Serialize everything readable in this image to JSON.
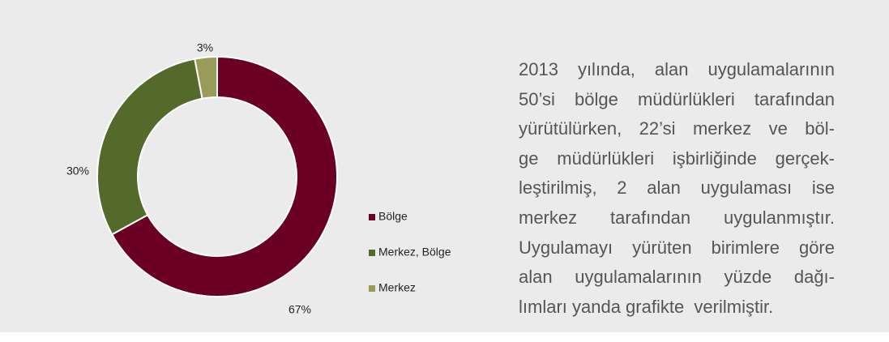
{
  "chart_data": {
    "type": "donut",
    "categories": [
      "Bölge",
      "Merkez, Bölge",
      "Merkez"
    ],
    "values": [
      67,
      30,
      3
    ],
    "value_labels": [
      "67%",
      "30%",
      "3%"
    ],
    "colors": [
      "#6a0024",
      "#536a2b",
      "#9a9a5a"
    ],
    "legend": "right"
  },
  "text": {
    "lines": [
      "2013 yılında, alan uygulamalarının",
      "50’si bölge müdürlükleri tarafından",
      "yürütülürken, 22’si merkez ve böl-",
      "ge müdürlükleri işbirliğinde gerçek-",
      "leştirilmiş, 2 alan uygulaması ise",
      "merkez tarafından uygulanmıştır.",
      "Uygulamayı yürüten birimlere göre",
      "alan uygulamalarının yüzde dağı-",
      "lımları yanda grafikte  verilmiştir."
    ]
  }
}
